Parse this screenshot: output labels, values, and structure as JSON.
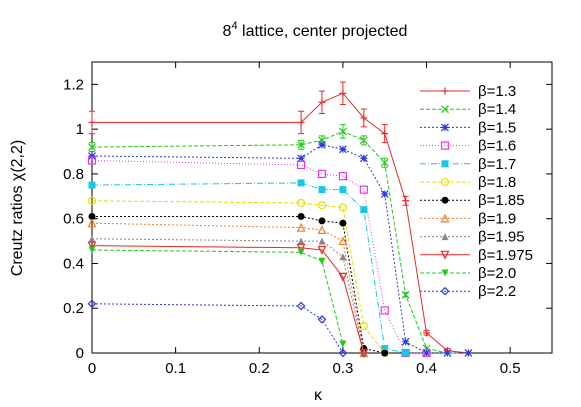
{
  "chart_data": {
    "type": "line",
    "title": "8⁴ lattice, center projected",
    "xlabel": "κ",
    "ylabel": "Creutz ratios χ(2,2)",
    "xlim": [
      0,
      0.55
    ],
    "ylim": [
      0,
      1.3
    ],
    "x_ticks": [
      "0",
      "0.1",
      "0.2",
      "0.3",
      "0.4",
      "0.5"
    ],
    "y_ticks": [
      "0",
      "0.2",
      "0.4",
      "0.6",
      "0.8",
      "1",
      "1.2"
    ],
    "grid": false,
    "legend_position": "right",
    "series": [
      {
        "name": "β=1.3",
        "color": "#e8282a",
        "marker": "plus",
        "dash": "",
        "x": [
          0,
          0.25,
          0.275,
          0.3,
          0.325,
          0.35,
          0.375,
          0.4,
          0.425,
          0.45
        ],
        "y": [
          1.03,
          1.03,
          1.12,
          1.16,
          1.05,
          0.98,
          0.68,
          0.09,
          0.01,
          0.0
        ],
        "err": [
          0.05,
          0.05,
          0.05,
          0.05,
          0.04,
          0.04,
          0.02,
          0.01,
          0.01,
          0.0
        ]
      },
      {
        "name": "β=1.4",
        "color": "#22c81a",
        "marker": "cross",
        "dash": "4,2",
        "x": [
          0,
          0.25,
          0.275,
          0.3,
          0.325,
          0.35,
          0.375,
          0.4,
          0.425,
          0.45
        ],
        "y": [
          0.92,
          0.93,
          0.95,
          0.99,
          0.95,
          0.85,
          0.26,
          0.02,
          0.0,
          0.0
        ],
        "err": [
          0.02,
          0.02,
          0.02,
          0.03,
          0.02,
          0.02,
          0.01,
          0.0,
          0.0,
          0.0
        ]
      },
      {
        "name": "β=1.5",
        "color": "#2a36e0",
        "marker": "star",
        "dash": "2,2",
        "x": [
          0,
          0.25,
          0.275,
          0.3,
          0.325,
          0.35,
          0.375,
          0.4,
          0.425,
          0.45
        ],
        "y": [
          0.88,
          0.87,
          0.93,
          0.91,
          0.87,
          0.71,
          0.05,
          0.0,
          0.0,
          0.0
        ]
      },
      {
        "name": "β=1.6",
        "color": "#e23ae6",
        "marker": "square-open",
        "dash": "1,2",
        "x": [
          0,
          0.25,
          0.275,
          0.3,
          0.325,
          0.35,
          0.375,
          0.4
        ],
        "y": [
          0.86,
          0.84,
          0.8,
          0.79,
          0.73,
          0.19,
          0.0,
          0.0
        ]
      },
      {
        "name": "β=1.7",
        "color": "#19c8e6",
        "marker": "square",
        "dash": "6,2,1,2",
        "x": [
          0,
          0.25,
          0.275,
          0.3,
          0.325,
          0.35,
          0.375
        ],
        "y": [
          0.75,
          0.76,
          0.73,
          0.73,
          0.64,
          0.02,
          0.0
        ]
      },
      {
        "name": "β=1.8",
        "color": "#e6e000",
        "marker": "circle-open",
        "dash": "4,2",
        "x": [
          0,
          0.25,
          0.275,
          0.3,
          0.325,
          0.35
        ],
        "y": [
          0.68,
          0.67,
          0.66,
          0.65,
          0.12,
          0.0
        ]
      },
      {
        "name": "β=1.85",
        "color": "#000000",
        "marker": "circle",
        "dash": "2,2",
        "x": [
          0,
          0.25,
          0.275,
          0.3,
          0.325,
          0.35
        ],
        "y": [
          0.61,
          0.61,
          0.59,
          0.58,
          0.02,
          0.0
        ]
      },
      {
        "name": "β=1.9",
        "color": "#ee8030",
        "marker": "triangle-open",
        "dash": "2,2",
        "x": [
          0,
          0.25,
          0.275,
          0.3,
          0.325
        ],
        "y": [
          0.58,
          0.56,
          0.55,
          0.5,
          0.0
        ]
      },
      {
        "name": "β=1.95",
        "color": "#888888",
        "marker": "triangle",
        "dash": "2,2",
        "x": [
          0,
          0.25,
          0.275,
          0.3,
          0.325
        ],
        "y": [
          0.51,
          0.5,
          0.5,
          0.43,
          0.0
        ]
      },
      {
        "name": "β=1.975",
        "color": "#e8282a",
        "marker": "triangle-down-open",
        "dash": "",
        "x": [
          0,
          0.25,
          0.275,
          0.3,
          0.325
        ],
        "y": [
          0.48,
          0.47,
          0.46,
          0.34,
          0.0
        ]
      },
      {
        "name": "β=2.0",
        "color": "#22c81a",
        "marker": "triangle-down",
        "dash": "4,2",
        "x": [
          0,
          0.25,
          0.275,
          0.3
        ],
        "y": [
          0.46,
          0.45,
          0.41,
          0.04
        ]
      },
      {
        "name": "β=2.2",
        "color": "#2a36e0",
        "marker": "diamond-open",
        "dash": "2,2",
        "x": [
          0,
          0.25,
          0.275,
          0.3
        ],
        "y": [
          0.22,
          0.21,
          0.15,
          0.0
        ]
      }
    ]
  }
}
